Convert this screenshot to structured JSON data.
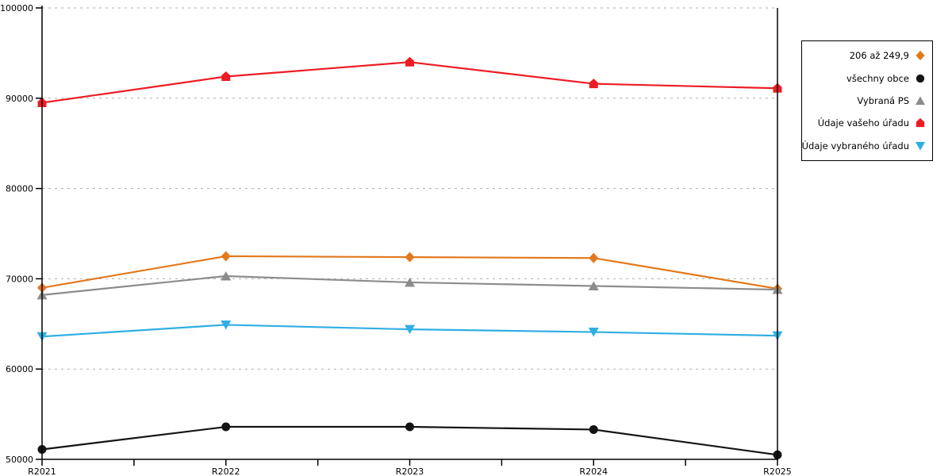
{
  "chart_data": {
    "type": "line",
    "title": "",
    "xlabel": "",
    "ylabel": "",
    "categories": [
      "R2021",
      "R2022",
      "R2023",
      "R2024",
      "R2025"
    ],
    "series": [
      {
        "name": "206 až 249,9",
        "color": "#E2791D",
        "marker": "diamond",
        "values": [
          69000,
          72500,
          72400,
          72300,
          68900
        ]
      },
      {
        "name": "všechny obce",
        "color": "#141414",
        "marker": "circle",
        "values": [
          51100,
          53600,
          53600,
          53300,
          50500
        ]
      },
      {
        "name": "Vybraná PS",
        "color": "#8C8C8C",
        "marker": "triangle-up",
        "values": [
          68200,
          70300,
          69600,
          69200,
          68800
        ]
      },
      {
        "name": "Údaje vašeho úřadu",
        "color": "#ED1C24",
        "marker": "pentagon",
        "values": [
          89500,
          92400,
          94000,
          91600,
          91100
        ]
      },
      {
        "name": "Údaje vybraného úřadu",
        "color": "#2FAFE3",
        "marker": "triangle-down",
        "values": [
          63600,
          64900,
          64400,
          64100,
          63700
        ]
      }
    ],
    "ylim": [
      50000,
      100000
    ],
    "ytick_step": 10000,
    "ytick_labels": [
      "50000",
      "60000",
      "70000",
      "80000",
      "90000",
      "100000"
    ],
    "grid": "horizontal-dashed",
    "gridline_color": "#ADADAD",
    "axis_color": "#000000",
    "legend_position": "right"
  }
}
